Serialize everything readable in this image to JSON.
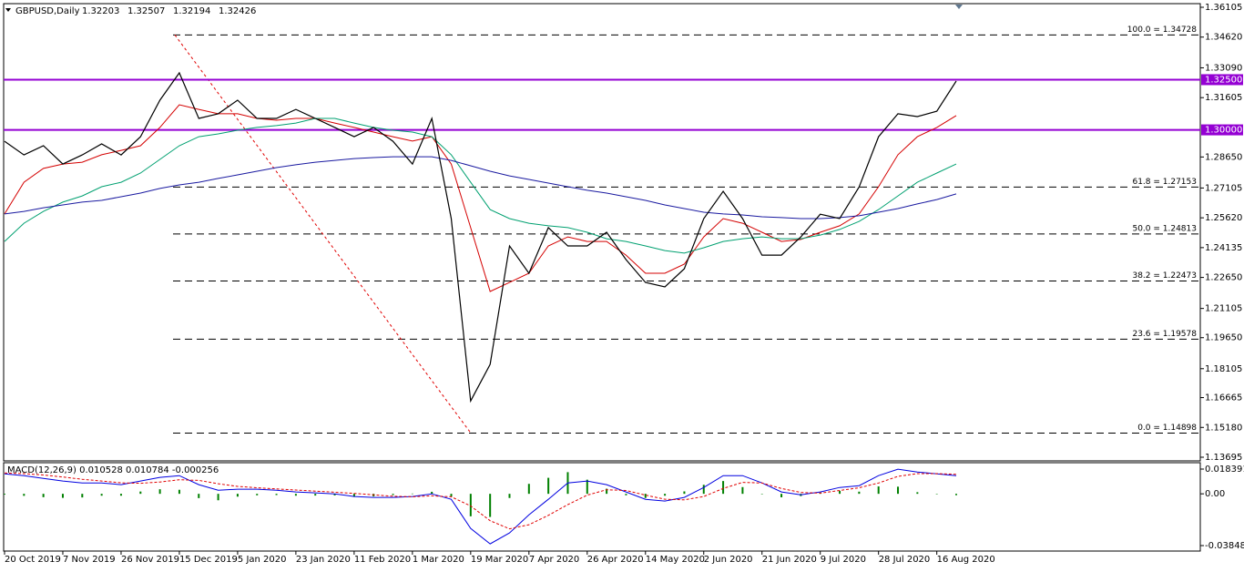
{
  "chart_data": {
    "type": "line",
    "symbol": "GBPUSD,Daily",
    "ohlc": [
      1.32203,
      1.32507,
      1.32194,
      1.32426
    ],
    "categories": [
      "20 Oct 2019",
      null,
      null,
      "7 Nov 2019",
      null,
      null,
      "26 Nov 2019",
      null,
      null,
      "15 Dec 2019",
      null,
      null,
      "5 Jan 2020",
      null,
      null,
      "23 Jan 2020",
      null,
      null,
      "11 Feb 2020",
      null,
      null,
      "1 Mar 2020",
      null,
      null,
      "19 Mar 2020",
      null,
      null,
      "7 Apr 2020",
      null,
      null,
      "26 Apr 2020",
      null,
      null,
      "14 May 2020",
      null,
      null,
      "2 Jun 2020",
      null,
      null,
      "21 Jun 2020",
      null,
      null,
      "9 Jul 2020",
      null,
      null,
      "28 Jul 2020",
      null,
      null,
      "16 Aug 2020",
      null
    ],
    "series": [
      {
        "color": "#000000",
        "values": [
          1.2943,
          1.2875,
          1.2921,
          1.283,
          1.2875,
          1.293,
          1.2875,
          1.2966,
          1.3148,
          1.3284,
          1.3057,
          1.308,
          1.3148,
          1.3057,
          1.3057,
          1.3102,
          1.3057,
          1.3012,
          1.2966,
          1.3012,
          1.2943,
          1.283,
          1.3057,
          1.2558,
          1.165,
          1.1832,
          1.2422,
          1.2286,
          1.2513,
          1.2422,
          1.2422,
          1.249,
          1.2354,
          1.224,
          1.2218,
          1.2308,
          1.2558,
          1.2694,
          1.2558,
          1.2376,
          1.2376,
          1.2467,
          1.258,
          1.2558,
          1.2716,
          1.2966,
          1.308,
          1.3066,
          1.3093,
          1.3243
        ]
      },
      {
        "color": "#d40000",
        "values": [
          1.2581,
          1.2739,
          1.2808,
          1.283,
          1.2839,
          1.2876,
          1.2898,
          1.2921,
          1.3012,
          1.3125,
          1.3102,
          1.308,
          1.308,
          1.3057,
          1.3048,
          1.3057,
          1.3057,
          1.3034,
          1.3012,
          1.2989,
          1.2966,
          1.2944,
          1.2966,
          1.283,
          1.2513,
          1.2195,
          1.224,
          1.2286,
          1.2422,
          1.2467,
          1.2444,
          1.2444,
          1.2376,
          1.2286,
          1.2286,
          1.2331,
          1.2467,
          1.2558,
          1.2535,
          1.249,
          1.2444,
          1.2454,
          1.249,
          1.2522,
          1.2581,
          1.2717,
          1.2876,
          1.2966,
          1.3012,
          1.3071
        ]
      },
      {
        "color": "#00a070",
        "values": [
          1.2444,
          1.2535,
          1.2594,
          1.264,
          1.2671,
          1.2717,
          1.2739,
          1.2785,
          1.2853,
          1.2921,
          1.2966,
          1.298,
          1.2998,
          1.3012,
          1.3021,
          1.3034,
          1.3057,
          1.3057,
          1.3034,
          1.3012,
          1.2998,
          1.2989,
          1.2966,
          1.2876,
          1.2739,
          1.2603,
          1.2558,
          1.2535,
          1.2522,
          1.2513,
          1.249,
          1.2458,
          1.2444,
          1.2422,
          1.2399,
          1.2386,
          1.2413,
          1.2444,
          1.2458,
          1.2467,
          1.2458,
          1.2458,
          1.2476,
          1.2504,
          1.2544,
          1.2603,
          1.2671,
          1.2739,
          1.2785,
          1.283
        ]
      },
      {
        "color": "#1a1aa0",
        "values": [
          1.2581,
          1.2594,
          1.2612,
          1.2626,
          1.264,
          1.2649,
          1.2667,
          1.2685,
          1.2708,
          1.2726,
          1.2739,
          1.2758,
          1.2776,
          1.2794,
          1.2812,
          1.2826,
          1.2839,
          1.2848,
          1.2857,
          1.2862,
          1.2866,
          1.2866,
          1.2866,
          1.2848,
          1.2821,
          1.2794,
          1.2771,
          1.2753,
          1.2735,
          1.2717,
          1.2699,
          1.2685,
          1.2667,
          1.2649,
          1.2626,
          1.2608,
          1.259,
          1.2581,
          1.2576,
          1.2567,
          1.2563,
          1.2558,
          1.2558,
          1.2563,
          1.2572,
          1.259,
          1.2608,
          1.2631,
          1.2653,
          1.2681
        ]
      }
    ],
    "ylim": [
      1.13559,
      1.36241
    ],
    "yticks": [
      {
        "value": 1.36105,
        "label": "1.36105"
      },
      {
        "value": 1.3462,
        "label": "1.34620"
      },
      {
        "value": 1.3309,
        "label": "1.33090"
      },
      {
        "value": 1.31605,
        "label": "1.31605"
      },
      {
        "value": 1.2865,
        "label": "1.28650"
      },
      {
        "value": 1.27105,
        "label": "1.27105"
      },
      {
        "value": 1.2562,
        "label": "1.25620"
      },
      {
        "value": 1.24135,
        "label": "1.24135"
      },
      {
        "value": 1.2265,
        "label": "1.22650"
      },
      {
        "value": 1.21105,
        "label": "1.21105"
      },
      {
        "value": 1.1965,
        "label": "1.19650"
      },
      {
        "value": 1.18105,
        "label": "1.18105"
      },
      {
        "value": 1.16665,
        "label": "1.16665"
      },
      {
        "value": 1.1518,
        "label": "1.15180"
      },
      {
        "value": 1.13695,
        "label": "1.13695"
      }
    ],
    "levels": [
      {
        "value": 1.325,
        "label": "1.32500"
      },
      {
        "value": 1.3,
        "label": "1.30000"
      }
    ],
    "level_color": "#9400d3",
    "fib_levels": [
      {
        "value": 1.34728,
        "label": "100.0 = 1.34728"
      },
      {
        "value": 1.27153,
        "label": "61.8 = 1.27153"
      },
      {
        "value": 1.24813,
        "label": "50.0 = 1.24813"
      },
      {
        "value": 1.22473,
        "label": "38.2 = 1.22473"
      },
      {
        "value": 1.19578,
        "label": "23.6 = 1.19578"
      },
      {
        "value": 1.14898,
        "label": "0.0 = 1.14898"
      }
    ],
    "macd": {
      "title": "MACD(12,26,9) 0.010528 0.010784 -0.000256",
      "ylim": [
        -0.041869,
        0.021776
      ],
      "yticks": [
        {
          "value": 0.018391,
          "label": "0.018391"
        },
        {
          "value": 0,
          "label": "0.00"
        },
        {
          "value": -0.038484,
          "label": "-0.038484"
        }
      ],
      "main": {
        "color": "#0000e0",
        "values": [
          0.0149,
          0.0135,
          0.0115,
          0.0095,
          0.0081,
          0.0081,
          0.0068,
          0.0095,
          0.0122,
          0.0135,
          0.0068,
          0.0027,
          0.0034,
          0.0034,
          0.0027,
          0.0014,
          0.0007,
          0,
          -0.002,
          -0.0027,
          -0.0027,
          -0.002,
          0,
          -0.0041,
          -0.0257,
          -0.0372,
          -0.0291,
          -0.0156,
          -0.0041,
          0.0081,
          0.0095,
          0.0068,
          0.0014,
          -0.0041,
          -0.0054,
          -0.0027,
          0.0047,
          0.0135,
          0.0135,
          0.0081,
          0.0014,
          -0.0007,
          0.0014,
          0.0047,
          0.0061,
          0.0135,
          0.0183,
          0.0162,
          0.0149,
          0.0135
        ]
      },
      "signal": {
        "color": "#e00000",
        "values": [
          0.0155,
          0.015,
          0.014,
          0.0125,
          0.0108,
          0.0095,
          0.0082,
          0.0078,
          0.0088,
          0.0105,
          0.01,
          0.0075,
          0.0055,
          0.0045,
          0.0036,
          0.0028,
          0.002,
          0.0012,
          0.0003,
          -0.0008,
          -0.0018,
          -0.0022,
          -0.0015,
          -0.0022,
          -0.009,
          -0.02,
          -0.026,
          -0.023,
          -0.016,
          -0.008,
          -0.001,
          0.003,
          0.0025,
          -0.001,
          -0.004,
          -0.0045,
          -0.002,
          0.004,
          0.0085,
          0.008,
          0.004,
          0.001,
          0.0005,
          0.0025,
          0.0045,
          0.008,
          0.013,
          0.015,
          0.015,
          0.0145
        ]
      },
      "histogram": {
        "color": "#008000",
        "values": [
          -0.0006,
          -0.0015,
          -0.0025,
          -0.003,
          -0.0027,
          -0.0014,
          -0.0014,
          0.0017,
          0.0034,
          0.003,
          -0.0032,
          -0.0048,
          -0.0021,
          -0.0011,
          -0.0009,
          -0.0014,
          -0.0013,
          -0.0012,
          -0.0023,
          -0.0019,
          -0.0009,
          0.0002,
          0.0015,
          -0.0019,
          -0.0167,
          -0.0172,
          -0.0031,
          0.0074,
          0.0119,
          0.0161,
          0.0105,
          0.0038,
          -0.0011,
          -0.0031,
          -0.0014,
          0.0018,
          0.0067,
          0.0095,
          0.005,
          0.0001,
          -0.0026,
          -0.0017,
          0.0009,
          0.0022,
          0.0016,
          0.0055,
          0.0053,
          0.0012,
          -0.0001,
          -0.001
        ]
      }
    }
  }
}
